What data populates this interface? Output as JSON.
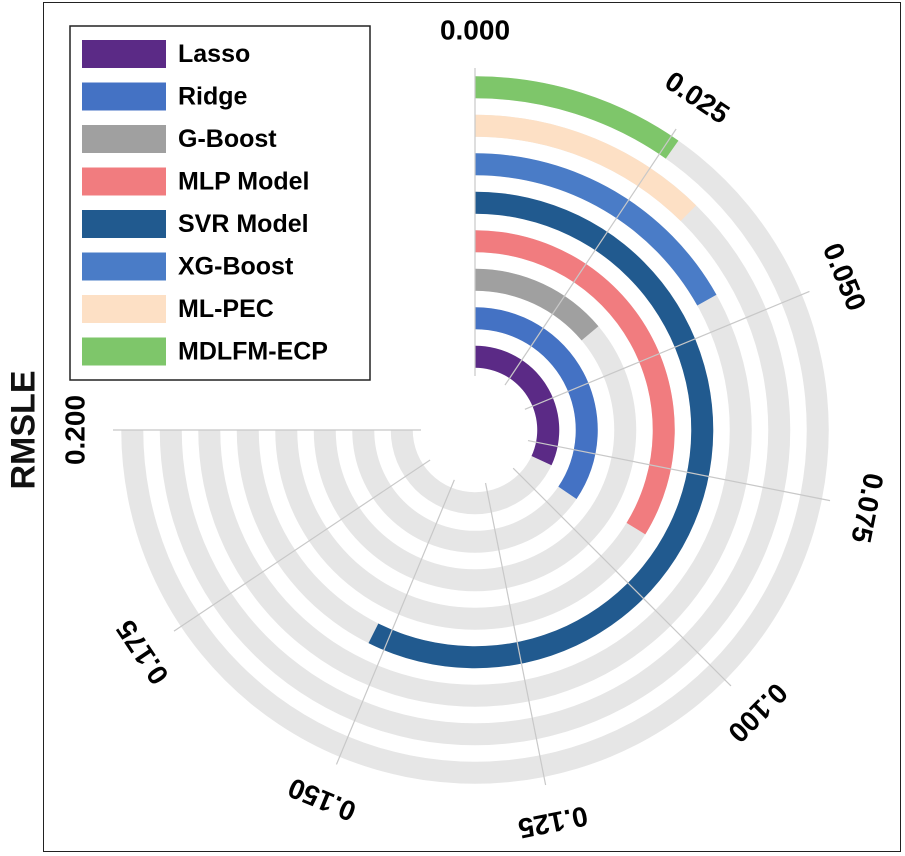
{
  "chart_data": {
    "type": "radial-bar",
    "ylabel": "RMSLE",
    "axis_max": 0.2,
    "start_angle_deg": 0,
    "span_deg": 270,
    "direction": "clockwise",
    "ticks": [
      "0.000",
      "0.025",
      "0.050",
      "0.075",
      "0.100",
      "0.125",
      "0.150",
      "0.175",
      "0.200"
    ],
    "legend_position": "top-left",
    "series": [
      {
        "name": "Lasso",
        "value": 0.085,
        "color": "#5b2a86"
      },
      {
        "name": "Ridge",
        "value": 0.092,
        "color": "#4472c4"
      },
      {
        "name": "G-Boost",
        "value": 0.037,
        "color": "#a0a0a0"
      },
      {
        "name": "MLP Model",
        "value": 0.09,
        "color": "#f17c7f"
      },
      {
        "name": "SVR Model",
        "value": 0.153,
        "color": "#215a8f"
      },
      {
        "name": "XG-Boost",
        "value": 0.045,
        "color": "#4a7cc7"
      },
      {
        "name": "ML-PEC",
        "value": 0.033,
        "color": "#fde0c5"
      },
      {
        "name": "MDLFM-ECP",
        "value": 0.026,
        "color": "#7ec66a"
      }
    ],
    "track_color": "#e6e6e6"
  }
}
